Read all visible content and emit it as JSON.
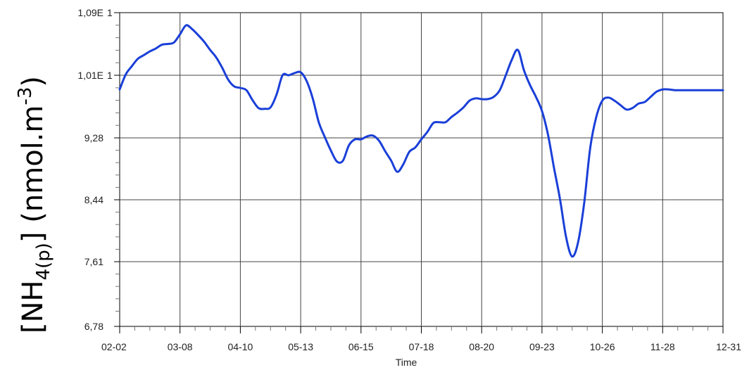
{
  "chart_data": {
    "type": "line",
    "title": "",
    "xlabel": "Time",
    "ylabel_main": "[NH",
    "ylabel_sub": "4(p)",
    "ylabel_tail": "] (nmol.m",
    "ylabel_sup": "-3",
    "ylabel_end": ")",
    "y_tick_labels": [
      "1,09E",
      "1,01E",
      "9,28",
      "8,44",
      "7,61",
      "6,78"
    ],
    "y_tick_suffix": [
      "1",
      "1",
      "",
      "",
      "",
      ""
    ],
    "x_tick_labels": [
      "02-02",
      "03-08",
      "04-10",
      "05-13",
      "06-15",
      "07-18",
      "08-20",
      "09-23",
      "10-26",
      "11-28",
      "12-31"
    ],
    "ylim": [
      6.78,
      10.9
    ],
    "grid": true,
    "line_color": "#1a3fd8",
    "series": [
      {
        "x": [
          0,
          0.1,
          0.2,
          0.3,
          0.4,
          0.5,
          0.6,
          0.7,
          0.8,
          0.9,
          1.0,
          1.1,
          1.2,
          1.3,
          1.4,
          1.5,
          1.6,
          1.7,
          1.8,
          1.9,
          2.0,
          2.1,
          2.2,
          2.3,
          2.4,
          2.5,
          2.6,
          2.7,
          2.8,
          2.9,
          3.0,
          3.1,
          3.2,
          3.3,
          3.4,
          3.5,
          3.6,
          3.7,
          3.8,
          3.9,
          4.0,
          4.1,
          4.2,
          4.3,
          4.4,
          4.5,
          4.6,
          4.7,
          4.8,
          4.9,
          5.0,
          5.1,
          5.2,
          5.3,
          5.4,
          5.5,
          5.6,
          5.7,
          5.8,
          5.9,
          6.0,
          6.1,
          6.2,
          6.3,
          6.4,
          6.5,
          6.6,
          6.7,
          6.8,
          6.9,
          7.0,
          7.1,
          7.2,
          7.3,
          7.4,
          7.5,
          7.6,
          7.7,
          7.8,
          7.9,
          8.0,
          8.1,
          8.2,
          8.3,
          8.4,
          8.5,
          8.6,
          8.7,
          8.8,
          8.9,
          9.0,
          9.1,
          9.2,
          9.3,
          9.4,
          9.5,
          9.6,
          9.7,
          9.8,
          9.9,
          10.0
        ],
        "y": [
          9.87,
          10.07,
          10.18,
          10.28,
          10.33,
          10.38,
          10.42,
          10.47,
          10.48,
          10.5,
          10.61,
          10.73,
          10.68,
          10.6,
          10.51,
          10.4,
          10.3,
          10.16,
          10.0,
          9.91,
          9.89,
          9.86,
          9.73,
          9.62,
          9.61,
          9.63,
          9.8,
          10.06,
          10.06,
          10.09,
          10.1,
          9.98,
          9.75,
          9.43,
          9.23,
          9.05,
          8.9,
          8.91,
          9.12,
          9.2,
          9.2,
          9.24,
          9.25,
          9.18,
          9.04,
          8.91,
          8.76,
          8.86,
          9.03,
          9.09,
          9.2,
          9.3,
          9.42,
          9.43,
          9.43,
          9.5,
          9.56,
          9.63,
          9.72,
          9.75,
          9.74,
          9.74,
          9.77,
          9.86,
          10.06,
          10.27,
          10.4,
          10.13,
          9.93,
          9.77,
          9.58,
          9.26,
          8.81,
          8.38,
          7.87,
          7.61,
          7.81,
          8.34,
          9.09,
          9.5,
          9.72,
          9.76,
          9.72,
          9.66,
          9.6,
          9.62,
          9.68,
          9.7,
          9.77,
          9.84,
          9.87,
          9.87,
          9.86,
          9.86,
          9.86,
          9.86,
          9.86,
          9.86,
          9.86,
          9.86,
          9.86
        ]
      }
    ]
  }
}
